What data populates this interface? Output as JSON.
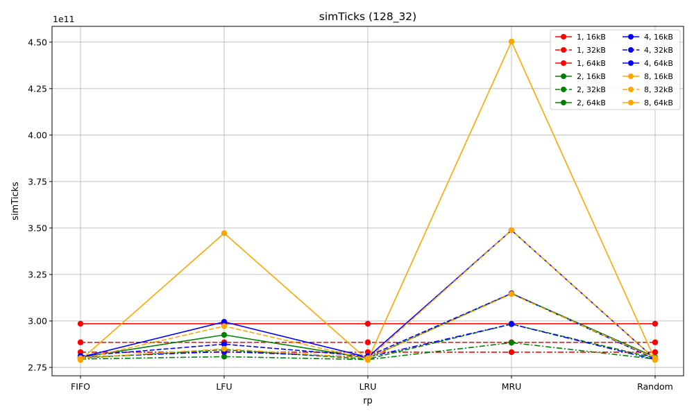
{
  "chart_data": {
    "type": "line",
    "title": "simTicks (128_32)",
    "xlabel": "rp",
    "ylabel": "simTicks",
    "y_offset_text": "1e11",
    "y_scale_note": "values in units of 1e11",
    "categories": [
      "FIFO",
      "LFU",
      "LRU",
      "MRU",
      "Random"
    ],
    "yticks": [
      "2.75",
      "3.00",
      "3.25",
      "3.50",
      "3.75",
      "4.00",
      "4.25",
      "4.50"
    ],
    "ytick_values": [
      2.75,
      3.0,
      3.25,
      3.5,
      3.75,
      4.0,
      4.25,
      4.5
    ],
    "ylim": [
      2.705,
      4.585
    ],
    "grid": true,
    "legend_position": "top-right",
    "legend_columns": 2,
    "series": [
      {
        "name": "1, 16kB",
        "color": "#ff0000",
        "dash": "solid",
        "values": [
          2.985,
          2.985,
          2.985,
          2.985,
          2.985
        ]
      },
      {
        "name": "1, 32kB",
        "color": "#ff0000",
        "dash": "dashed",
        "values": [
          2.885,
          2.885,
          2.885,
          2.885,
          2.885
        ]
      },
      {
        "name": "1, 64kB",
        "color": "#ff0000",
        "dash": "dashdot",
        "values": [
          2.832,
          2.832,
          2.832,
          2.832,
          2.832
        ]
      },
      {
        "name": "2, 16kB",
        "color": "#008000",
        "dash": "solid",
        "values": [
          2.805,
          2.925,
          2.8,
          3.148,
          2.805
        ]
      },
      {
        "name": "2, 32kB",
        "color": "#008000",
        "dash": "dashed",
        "values": [
          2.8,
          2.845,
          2.795,
          2.983,
          2.8
        ]
      },
      {
        "name": "2, 64kB",
        "color": "#008000",
        "dash": "dashdot",
        "values": [
          2.795,
          2.808,
          2.792,
          2.883,
          2.795
        ]
      },
      {
        "name": "4, 16kB",
        "color": "#0000ff",
        "dash": "solid",
        "values": [
          2.805,
          2.995,
          2.805,
          3.488,
          2.795
        ]
      },
      {
        "name": "4, 32kB",
        "color": "#0000ff",
        "dash": "dashed",
        "values": [
          2.812,
          2.875,
          2.81,
          3.148,
          2.795
        ]
      },
      {
        "name": "4, 64kB",
        "color": "#0000ff",
        "dash": "dashdot",
        "values": [
          2.805,
          2.835,
          2.805,
          2.983,
          2.792
        ]
      },
      {
        "name": "8, 16kB",
        "color": "#ffa500",
        "dash": "solid",
        "values": [
          2.79,
          3.472,
          2.79,
          4.503,
          2.79
        ]
      },
      {
        "name": "8, 32kB",
        "color": "#ffa500",
        "dash": "dashed",
        "values": [
          2.795,
          2.972,
          2.795,
          3.488,
          2.795
        ]
      },
      {
        "name": "8, 64kB",
        "color": "#ffa500",
        "dash": "dashdot",
        "values": [
          2.8,
          2.85,
          2.8,
          3.145,
          2.8
        ]
      }
    ]
  }
}
